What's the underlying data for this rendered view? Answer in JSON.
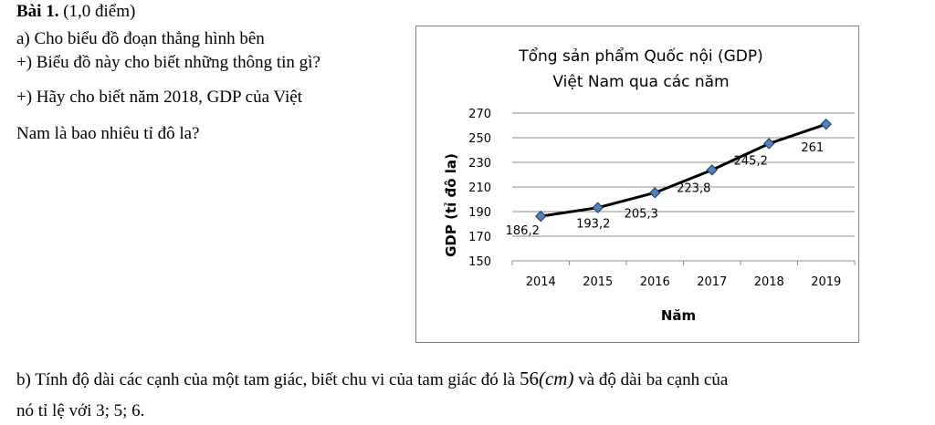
{
  "problem": {
    "heading_bold": "Bài 1.",
    "heading_points": " (1,0  điểm)",
    "part_a_intro": "a) Cho biểu đồ đoạn thẳng hình bên",
    "question_1": "+) Biểu đồ này cho biết những thông tin gì?",
    "question_2_line1": "+) Hãy cho biết năm 2018, GDP của Việt",
    "question_2_line2": "Nam là bao nhiêu tỉ đô la?",
    "part_b_line1_pre": "b) Tính độ dài các cạnh của một tam giác, biết chu vi của tam giác đó là ",
    "part_b_value": "56",
    "part_b_unit": "(cm)",
    "part_b_line1_post": "  và độ dài ba cạnh của",
    "part_b_line2": "nó tỉ lệ với 3; 5; 6."
  },
  "chart_data": {
    "type": "line",
    "title_line1": "Tổng sản phẩm Quốc nội (GDP)",
    "title_line2": "Việt Nam qua các năm",
    "xlabel": "Năm",
    "ylabel": "GDP (tỉ đô la)",
    "categories": [
      "2014",
      "2015",
      "2016",
      "2017",
      "2018",
      "2019"
    ],
    "values": [
      186.2,
      193.2,
      205.3,
      223.8,
      245.2,
      261
    ],
    "data_labels": [
      "186,2",
      "193,2",
      "205,3",
      "223,8",
      "245,2",
      "261"
    ],
    "yticks": [
      150,
      170,
      190,
      210,
      230,
      250,
      270
    ],
    "ylim": [
      150,
      270
    ],
    "grid": true,
    "legend": "none",
    "line_color": "#000000",
    "marker_color": "#4f81bd"
  }
}
